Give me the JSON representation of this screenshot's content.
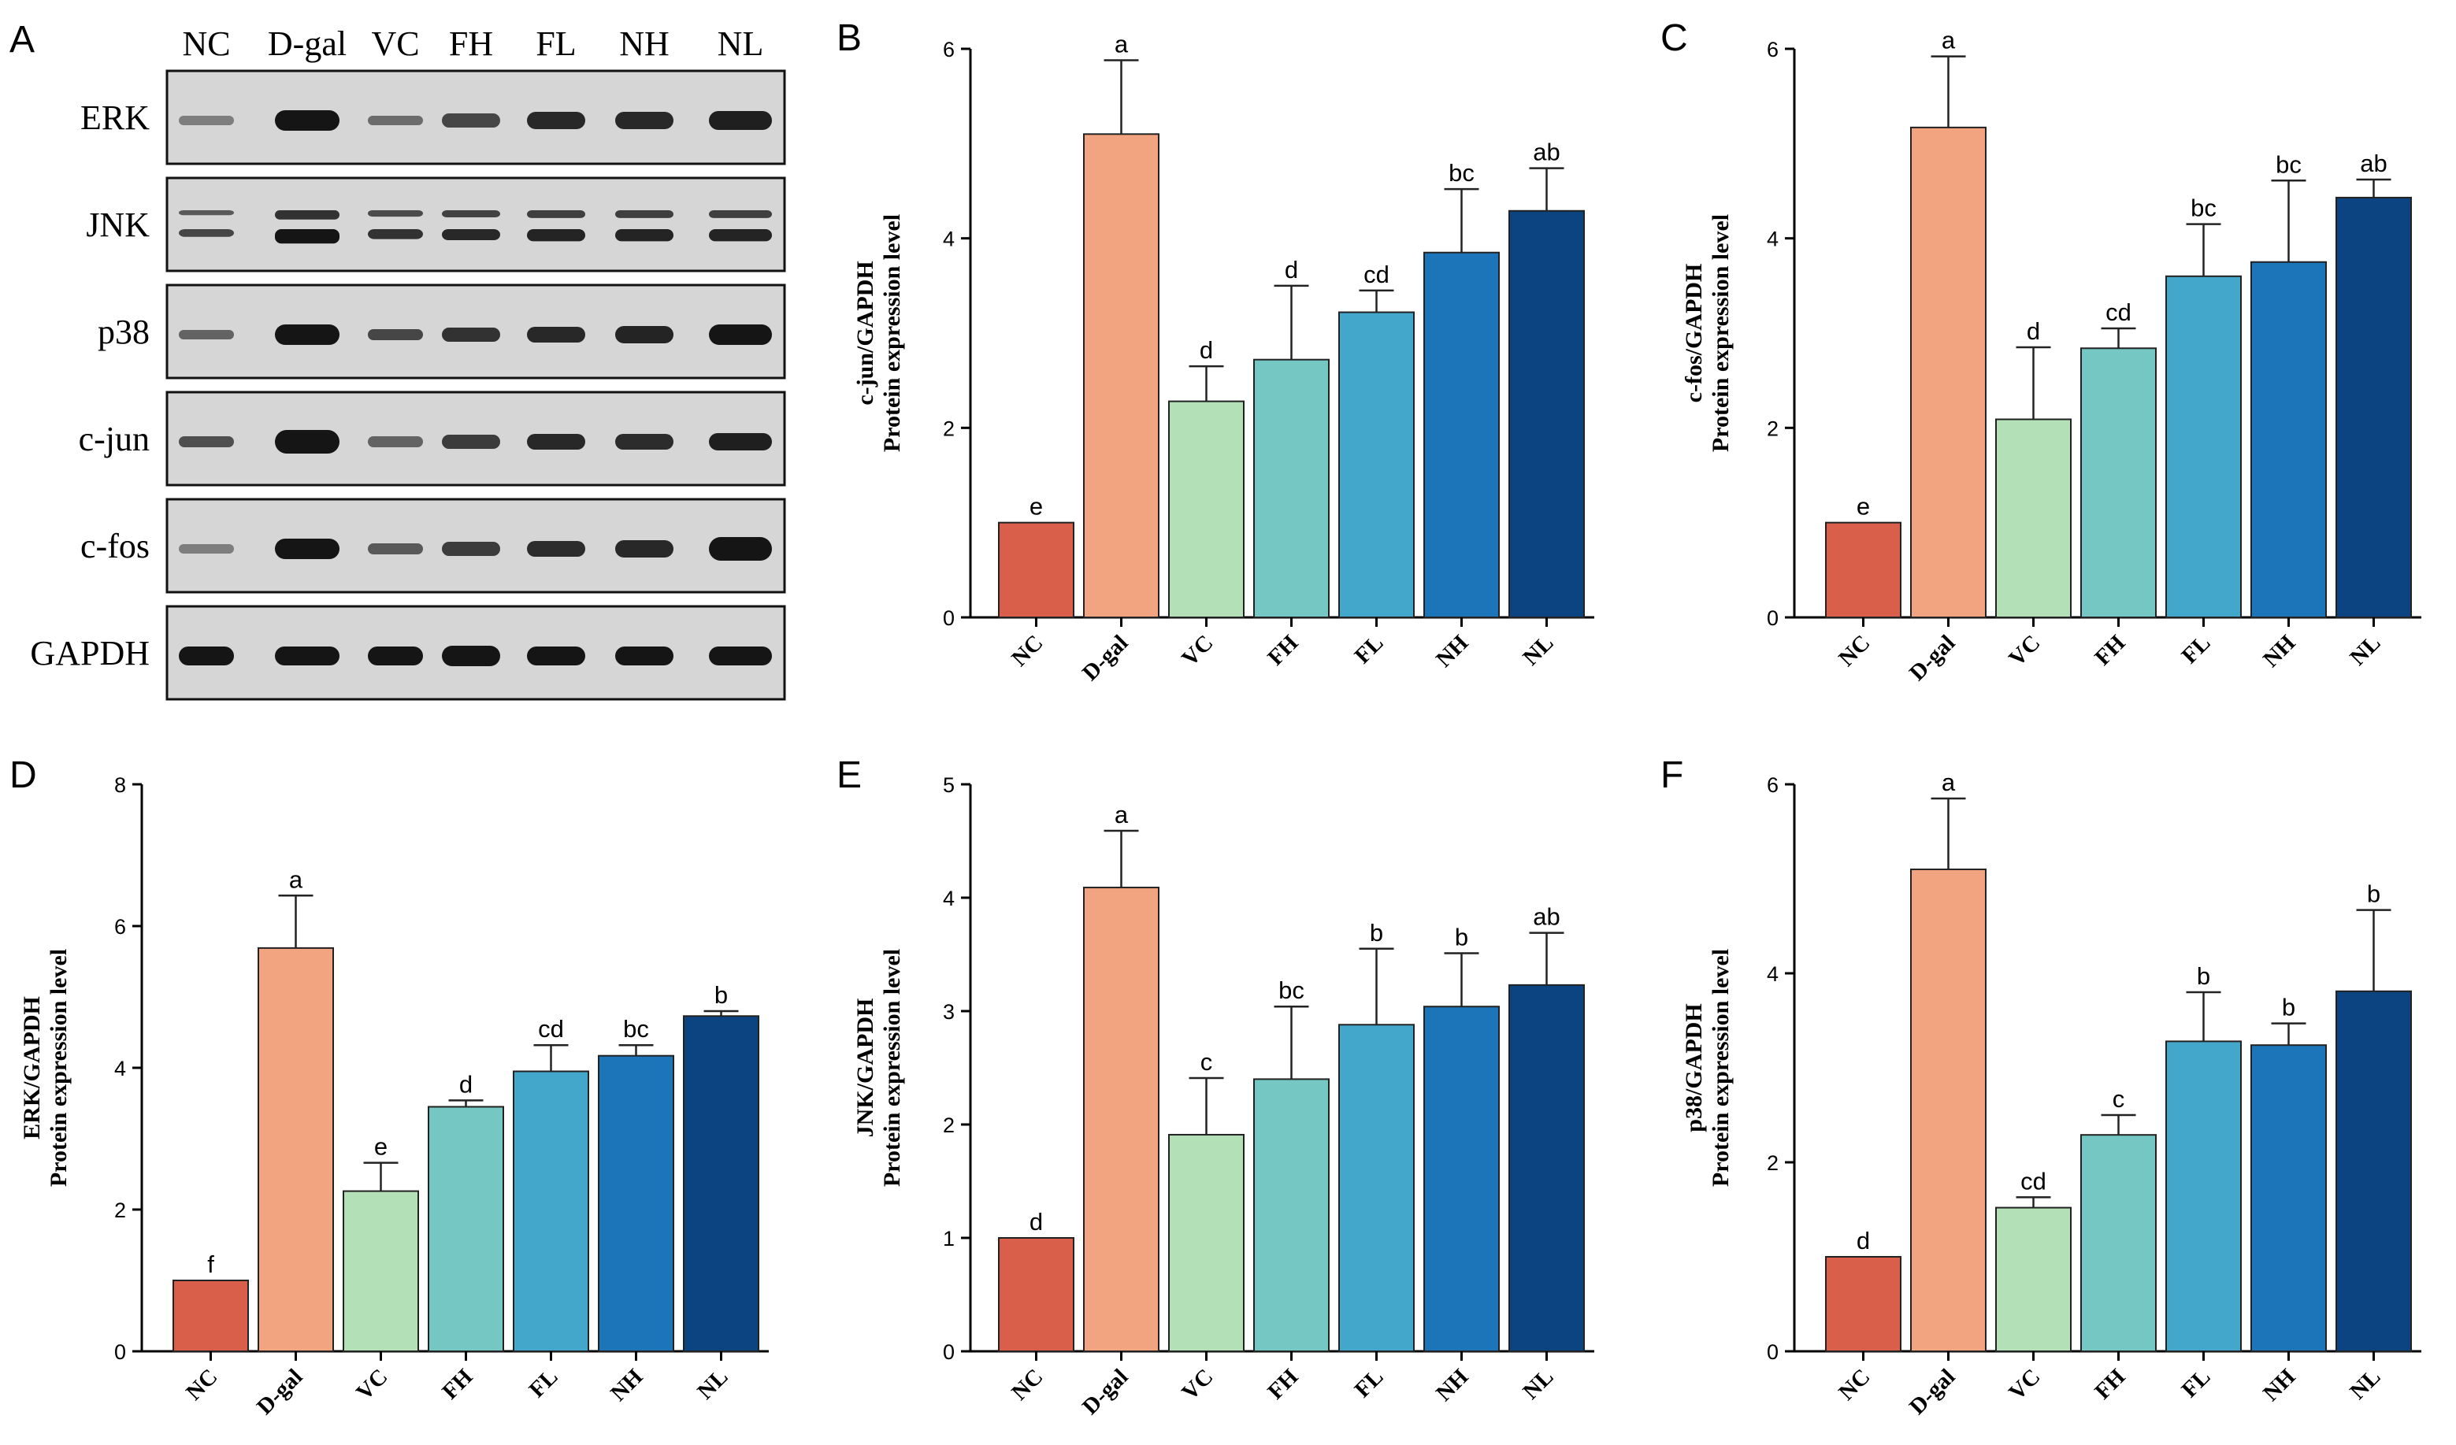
{
  "blot": {
    "panel": "A",
    "lanes": [
      "NC",
      "D-gal",
      "VC",
      "FH",
      "FL",
      "NH",
      "NL"
    ],
    "proteins": [
      "ERK",
      "JNK",
      "p38",
      "c-jun",
      "c-fos",
      "GAPDH"
    ]
  },
  "chart_data": [
    {
      "panel": "B",
      "type": "bar",
      "categories": [
        "NC",
        "D-gal",
        "VC",
        "FH",
        "FL",
        "NH",
        "NL"
      ],
      "values": [
        1.0,
        5.1,
        2.28,
        2.72,
        3.22,
        3.85,
        4.29
      ],
      "errors": [
        0,
        0.78,
        0.37,
        0.78,
        0.23,
        0.67,
        0.45
      ],
      "letters": [
        "e",
        "a",
        "d",
        "d",
        "cd",
        "bc",
        "ab"
      ],
      "ylabel": "c-jun/GAPDH",
      "ylabel2": "Protein expression level",
      "ylim": [
        0,
        6
      ],
      "yticks": [
        "0",
        "2",
        "4",
        "6"
      ]
    },
    {
      "panel": "C",
      "type": "bar",
      "categories": [
        "NC",
        "D-gal",
        "VC",
        "FH",
        "FL",
        "NH",
        "NL"
      ],
      "values": [
        1.0,
        5.17,
        2.09,
        2.84,
        3.6,
        3.75,
        4.43
      ],
      "errors": [
        0,
        0.75,
        0.76,
        0.21,
        0.55,
        0.86,
        0.19
      ],
      "letters": [
        "e",
        "a",
        "d",
        "cd",
        "bc",
        "bc",
        "ab"
      ],
      "ylabel": "c-fos/GAPDH",
      "ylabel2": "Protein expression level",
      "ylim": [
        0,
        6
      ],
      "yticks": [
        "0",
        "2",
        "4",
        "6"
      ]
    },
    {
      "panel": "D",
      "type": "bar",
      "categories": [
        "NC",
        "D-gal",
        "VC",
        "FH",
        "FL",
        "NH",
        "NL"
      ],
      "values": [
        1.0,
        5.69,
        2.26,
        3.45,
        3.95,
        4.17,
        4.73
      ],
      "errors": [
        0,
        0.74,
        0.4,
        0.09,
        0.37,
        0.15,
        0.07
      ],
      "letters": [
        "f",
        "a",
        "e",
        "d",
        "cd",
        "bc",
        "b"
      ],
      "ylabel": "ERK/GAPDH",
      "ylabel2": "Protein expression level",
      "ylim": [
        0,
        8
      ],
      "yticks": [
        "0",
        "2",
        "4",
        "6",
        "8"
      ]
    },
    {
      "panel": "E",
      "type": "bar",
      "categories": [
        "NC",
        "D-gal",
        "VC",
        "FH",
        "FL",
        "NH",
        "NL"
      ],
      "values": [
        1.0,
        4.09,
        1.91,
        2.4,
        2.88,
        3.04,
        3.23
      ],
      "errors": [
        0,
        0.5,
        0.5,
        0.64,
        0.67,
        0.47,
        0.46
      ],
      "letters": [
        "d",
        "a",
        "c",
        "bc",
        "b",
        "b",
        "ab"
      ],
      "ylabel": "JNK/GAPDH",
      "ylabel2": "Protein expression level",
      "ylim": [
        0,
        5
      ],
      "yticks": [
        "0",
        "1",
        "2",
        "3",
        "4",
        "5"
      ]
    },
    {
      "panel": "F",
      "type": "bar",
      "categories": [
        "NC",
        "D-gal",
        "VC",
        "FH",
        "FL",
        "NH",
        "NL"
      ],
      "values": [
        1.0,
        5.1,
        1.52,
        2.29,
        3.28,
        3.24,
        3.81
      ],
      "errors": [
        0,
        0.75,
        0.11,
        0.21,
        0.52,
        0.23,
        0.86
      ],
      "letters": [
        "d",
        "a",
        "cd",
        "c",
        "b",
        "b",
        "b"
      ],
      "ylabel": "p38/GAPDH",
      "ylabel2": "Protein expression level",
      "ylim": [
        0,
        6
      ],
      "yticks": [
        "0",
        "2",
        "4",
        "6"
      ]
    }
  ],
  "colors": {
    "bars": [
      "#d95f4b",
      "#f2a37f",
      "#b3e0b6",
      "#74c7c2",
      "#43a7cc",
      "#1c75b8",
      "#0c4482"
    ],
    "outline": "#222222",
    "blot_bg": "#d6d6d6",
    "band": "#151515"
  }
}
